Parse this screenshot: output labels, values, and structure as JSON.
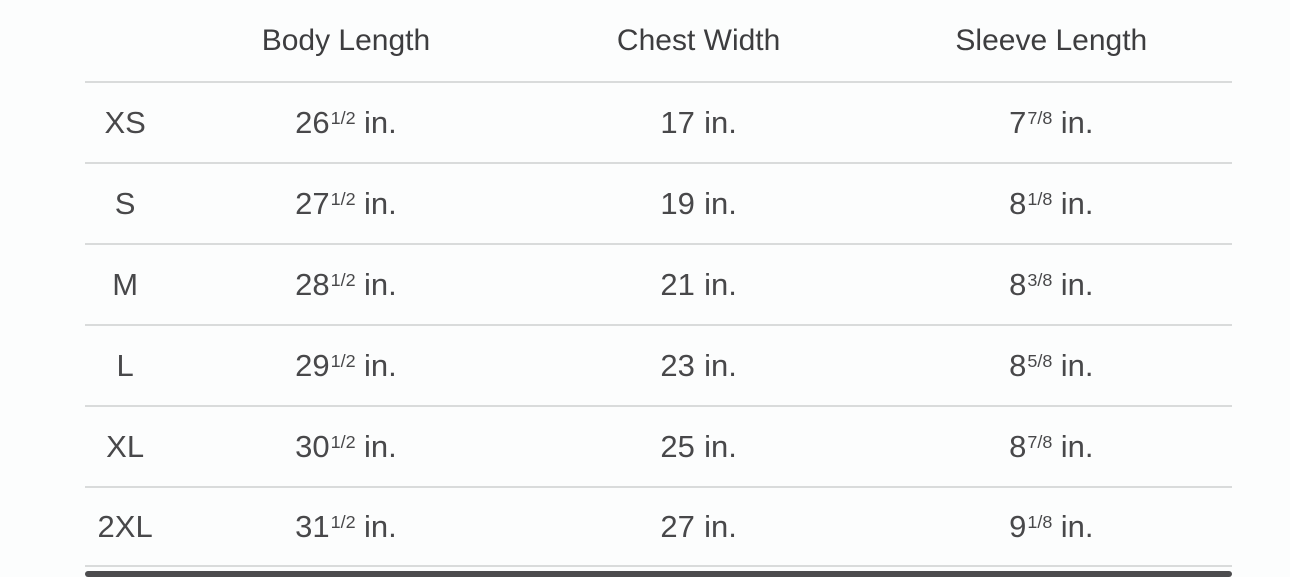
{
  "page": {
    "background_color": "#fcfdfd",
    "text_color": "#48484a",
    "separator_color": "#d9dbdb",
    "scrollbar_color": "#4c4c4e"
  },
  "table": {
    "unit": "in.",
    "headers": [
      {
        "label": ""
      },
      {
        "label": "Body Length"
      },
      {
        "label": "Chest Width"
      },
      {
        "label": "Sleeve Length"
      }
    ],
    "rows": [
      {
        "size": "XS",
        "body": {
          "whole": "26",
          "frac": "1/2"
        },
        "chest": {
          "whole": "17",
          "frac": ""
        },
        "sleeve": {
          "whole": "7",
          "frac": "7/8"
        }
      },
      {
        "size": "S",
        "body": {
          "whole": "27",
          "frac": "1/2"
        },
        "chest": {
          "whole": "19",
          "frac": ""
        },
        "sleeve": {
          "whole": "8",
          "frac": "1/8"
        }
      },
      {
        "size": "M",
        "body": {
          "whole": "28",
          "frac": "1/2"
        },
        "chest": {
          "whole": "21",
          "frac": ""
        },
        "sleeve": {
          "whole": "8",
          "frac": "3/8"
        }
      },
      {
        "size": "L",
        "body": {
          "whole": "29",
          "frac": "1/2"
        },
        "chest": {
          "whole": "23",
          "frac": ""
        },
        "sleeve": {
          "whole": "8",
          "frac": "5/8"
        }
      },
      {
        "size": "XL",
        "body": {
          "whole": "30",
          "frac": "1/2"
        },
        "chest": {
          "whole": "25",
          "frac": ""
        },
        "sleeve": {
          "whole": "8",
          "frac": "7/8"
        }
      },
      {
        "size": "2XL",
        "body": {
          "whole": "31",
          "frac": "1/2"
        },
        "chest": {
          "whole": "27",
          "frac": ""
        },
        "sleeve": {
          "whole": "9",
          "frac": "1/8"
        }
      }
    ]
  }
}
